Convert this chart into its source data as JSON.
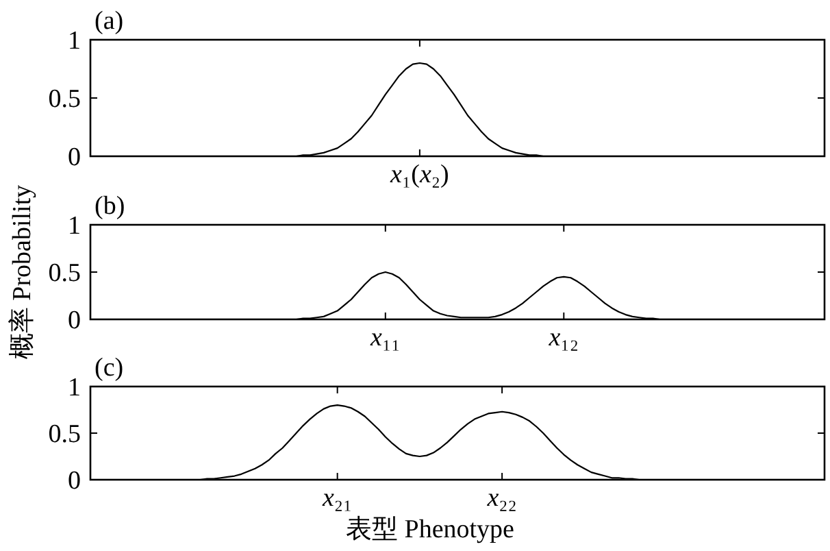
{
  "chart_data": [
    {
      "type": "line",
      "title": "(a)",
      "categories": [
        null,
        null,
        null,
        null,
        null,
        null,
        null,
        null,
        null,
        null,
        null,
        null,
        null,
        null,
        null,
        null,
        null,
        null,
        null,
        null,
        null,
        null,
        null,
        null,
        null,
        null,
        null,
        null,
        null,
        null,
        null,
        null,
        null,
        null,
        null,
        null,
        null,
        null,
        null,
        null,
        null,
        null,
        null,
        null,
        null,
        null,
        null,
        null,
        "x₁(x₂)",
        null,
        null,
        null,
        null,
        null,
        null,
        null,
        null,
        null,
        null,
        null,
        null,
        null,
        null,
        null,
        null,
        null,
        null,
        null,
        null,
        null,
        null,
        null,
        null,
        null,
        null,
        null,
        null,
        null,
        null,
        null,
        null,
        null,
        null,
        null,
        null,
        null,
        null,
        null,
        null,
        null,
        null,
        null,
        null,
        null,
        null,
        null,
        null,
        null,
        null,
        null,
        null,
        null,
        null,
        null,
        null,
        null,
        null,
        null
      ],
      "series": [
        {
          "color": "#000000",
          "values": [
            0,
            0,
            0,
            0,
            0,
            0,
            0,
            0,
            0,
            0,
            0,
            0,
            0,
            0,
            0,
            0,
            0,
            0,
            0,
            0,
            0,
            0,
            0,
            0,
            0,
            0,
            0,
            0,
            0,
            0,
            0,
            0.01,
            0.01,
            0.02,
            0.03,
            0.05,
            0.07,
            0.11,
            0.15,
            0.21,
            0.28,
            0.35,
            0.44,
            0.53,
            0.61,
            0.69,
            0.75,
            0.79,
            0.8,
            0.79,
            0.75,
            0.69,
            0.61,
            0.53,
            0.44,
            0.35,
            0.28,
            0.21,
            0.15,
            0.11,
            0.07,
            0.05,
            0.03,
            0.02,
            0.01,
            0.01,
            0,
            0,
            0,
            0,
            0,
            0,
            0,
            0,
            0,
            0,
            0,
            0,
            0,
            0,
            0,
            0,
            0,
            0,
            0,
            0,
            0,
            0,
            0,
            0,
            0,
            0,
            0,
            0,
            0,
            0,
            0,
            0,
            0,
            0,
            0,
            0,
            0,
            0,
            0,
            0,
            0,
            0
          ]
        }
      ],
      "ylim": [
        0,
        1
      ],
      "yticks": [
        0,
        0.5,
        1
      ]
    },
    {
      "type": "line",
      "title": "(b)",
      "ylabel": "概率 Probability",
      "categories": [
        null,
        null,
        null,
        null,
        null,
        null,
        null,
        null,
        null,
        null,
        null,
        null,
        null,
        null,
        null,
        null,
        null,
        null,
        null,
        null,
        null,
        null,
        null,
        null,
        null,
        null,
        null,
        null,
        null,
        null,
        null,
        null,
        null,
        null,
        null,
        null,
        null,
        null,
        null,
        null,
        null,
        null,
        null,
        "x₁₁",
        null,
        null,
        null,
        null,
        null,
        null,
        null,
        null,
        null,
        null,
        null,
        null,
        null,
        null,
        null,
        null,
        null,
        null,
        null,
        null,
        null,
        null,
        null,
        null,
        null,
        "x₁₂",
        null,
        null,
        null,
        null,
        null,
        null,
        null,
        null,
        null,
        null,
        null,
        null,
        null,
        null,
        null,
        null,
        null,
        null,
        null,
        null,
        null,
        null,
        null,
        null,
        null,
        null,
        null,
        null,
        null,
        null,
        null,
        null,
        null,
        null,
        null,
        null,
        null,
        null
      ],
      "series": [
        {
          "color": "#000000",
          "values": [
            0,
            0,
            0,
            0,
            0,
            0,
            0,
            0,
            0,
            0,
            0,
            0,
            0,
            0,
            0,
            0,
            0,
            0,
            0,
            0,
            0,
            0,
            0,
            0,
            0,
            0,
            0,
            0,
            0,
            0,
            0,
            0.01,
            0.01,
            0.02,
            0.03,
            0.06,
            0.09,
            0.15,
            0.21,
            0.29,
            0.37,
            0.44,
            0.48,
            0.5,
            0.48,
            0.44,
            0.37,
            0.29,
            0.21,
            0.15,
            0.09,
            0.06,
            0.04,
            0.03,
            0.02,
            0.02,
            0.02,
            0.02,
            0.02,
            0.03,
            0.05,
            0.08,
            0.12,
            0.17,
            0.23,
            0.29,
            0.35,
            0.4,
            0.44,
            0.45,
            0.44,
            0.4,
            0.35,
            0.29,
            0.23,
            0.17,
            0.12,
            0.08,
            0.05,
            0.03,
            0.02,
            0.01,
            0.01,
            0,
            0,
            0,
            0,
            0,
            0,
            0,
            0,
            0,
            0,
            0,
            0,
            0,
            0,
            0,
            0,
            0,
            0,
            0,
            0,
            0,
            0,
            0,
            0,
            0
          ]
        }
      ],
      "ylim": [
        0,
        1
      ],
      "yticks": [
        0,
        0.5,
        1
      ]
    },
    {
      "type": "line",
      "title": "(c)",
      "xlabel": "表型 Phenotype",
      "categories": [
        null,
        null,
        null,
        null,
        null,
        null,
        null,
        null,
        null,
        null,
        null,
        null,
        null,
        null,
        null,
        null,
        null,
        null,
        null,
        null,
        null,
        null,
        null,
        null,
        null,
        null,
        null,
        null,
        null,
        null,
        null,
        null,
        null,
        null,
        null,
        null,
        "x₂₁",
        null,
        null,
        null,
        null,
        null,
        null,
        null,
        null,
        null,
        null,
        null,
        null,
        null,
        null,
        null,
        null,
        null,
        null,
        null,
        null,
        null,
        null,
        null,
        "x₂₂",
        null,
        null,
        null,
        null,
        null,
        null,
        null,
        null,
        null,
        null,
        null,
        null,
        null,
        null,
        null,
        null,
        null,
        null,
        null,
        null,
        null,
        null,
        null,
        null,
        null,
        null,
        null,
        null,
        null,
        null,
        null,
        null,
        null,
        null,
        null,
        null,
        null,
        null,
        null,
        null,
        null,
        null,
        null,
        null,
        null,
        null,
        null
      ],
      "series": [
        {
          "color": "#000000",
          "values": [
            0,
            0,
            0,
            0,
            0,
            0,
            0,
            0,
            0,
            0,
            0,
            0,
            0,
            0,
            0,
            0,
            0,
            0.01,
            0.01,
            0.02,
            0.03,
            0.04,
            0.06,
            0.09,
            0.12,
            0.16,
            0.21,
            0.28,
            0.34,
            0.42,
            0.5,
            0.58,
            0.65,
            0.71,
            0.76,
            0.79,
            0.8,
            0.79,
            0.77,
            0.73,
            0.68,
            0.61,
            0.54,
            0.46,
            0.39,
            0.33,
            0.28,
            0.26,
            0.25,
            0.26,
            0.29,
            0.34,
            0.4,
            0.47,
            0.54,
            0.6,
            0.65,
            0.68,
            0.71,
            0.72,
            0.73,
            0.72,
            0.7,
            0.67,
            0.63,
            0.57,
            0.5,
            0.42,
            0.34,
            0.27,
            0.21,
            0.16,
            0.12,
            0.08,
            0.06,
            0.04,
            0.02,
            0.02,
            0.01,
            0.01,
            0,
            0,
            0,
            0,
            0,
            0,
            0,
            0,
            0,
            0,
            0,
            0,
            0,
            0,
            0,
            0,
            0,
            0,
            0,
            0,
            0,
            0,
            0,
            0,
            0,
            0,
            0,
            0
          ]
        }
      ],
      "ylim": [
        0,
        1
      ],
      "yticks": [
        0,
        0.5,
        1
      ]
    }
  ]
}
